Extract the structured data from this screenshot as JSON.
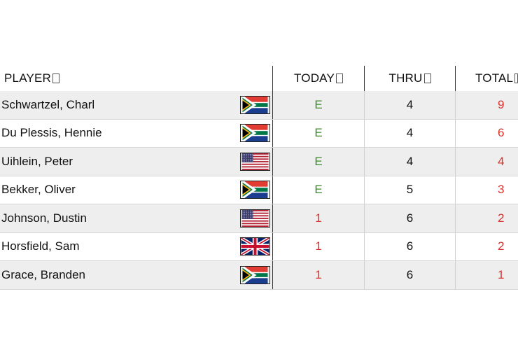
{
  "header": {
    "player": "PLAYER",
    "today": "TODAY",
    "thru": "THRU",
    "total": "TOTAL"
  },
  "rows": [
    {
      "name": "Schwartzel, Charl",
      "flag": "south-africa",
      "today": "E",
      "today_color": "green",
      "thru": "4",
      "total": "9"
    },
    {
      "name": "Du Plessis, Hennie",
      "flag": "south-africa",
      "today": "E",
      "today_color": "green",
      "thru": "4",
      "total": "6"
    },
    {
      "name": "Uihlein, Peter",
      "flag": "usa",
      "today": "E",
      "today_color": "green",
      "thru": "4",
      "total": "4"
    },
    {
      "name": "Bekker, Oliver",
      "flag": "south-africa",
      "today": "E",
      "today_color": "green",
      "thru": "5",
      "total": "3"
    },
    {
      "name": "Johnson, Dustin",
      "flag": "usa",
      "today": "1",
      "today_color": "red",
      "thru": "6",
      "total": "2"
    },
    {
      "name": "Horsfield, Sam",
      "flag": "uk",
      "today": "1",
      "today_color": "red",
      "thru": "6",
      "total": "2"
    },
    {
      "name": "Grace, Branden",
      "flag": "south-africa",
      "today": "1",
      "today_color": "red",
      "thru": "6",
      "total": "1"
    }
  ],
  "colors": {
    "green": "#3e8a2c",
    "red": "#d8322c",
    "row_alt": "#eeeeee"
  }
}
